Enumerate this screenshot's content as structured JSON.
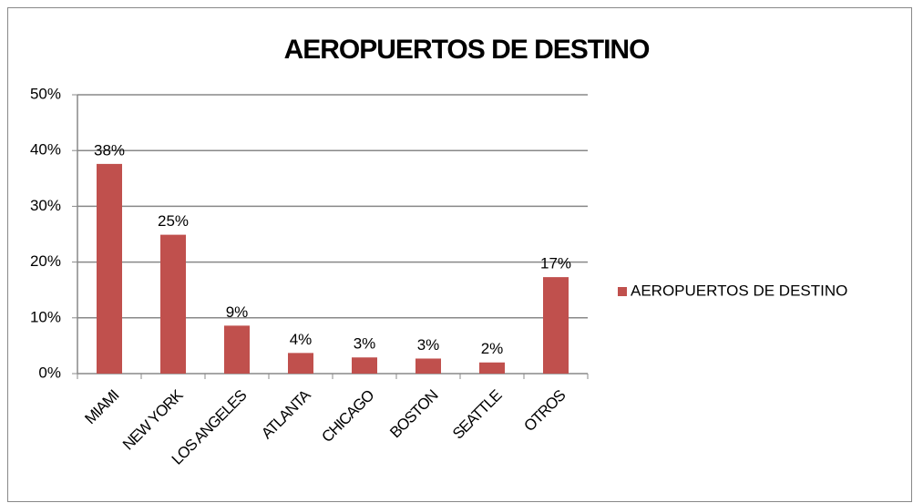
{
  "chart_data": {
    "type": "bar",
    "title": "AEROPUERTOS DE DESTINO",
    "categories": [
      "MIAMI",
      "NEW YORK",
      "LOS ANGELES",
      "ATLANTA",
      "CHICAGO",
      "BOSTON",
      "SEATTLE",
      "OTROS"
    ],
    "series": [
      {
        "name": "AEROPUERTOS DE DESTINO",
        "color": "#c0504d",
        "values": [
          37.6,
          24.9,
          8.6,
          3.7,
          2.9,
          2.7,
          2.0,
          17.3
        ],
        "value_labels": [
          "38%",
          "25%",
          "9%",
          "4%",
          "3%",
          "3%",
          "2%",
          "17%"
        ]
      }
    ],
    "ylim": [
      0,
      50
    ],
    "yticks": [
      {
        "value": 0,
        "label": "0%"
      },
      {
        "value": 10,
        "label": "10%"
      },
      {
        "value": 20,
        "label": "20%"
      },
      {
        "value": 30,
        "label": "30%"
      },
      {
        "value": 40,
        "label": "40%"
      },
      {
        "value": 50,
        "label": "50%"
      }
    ],
    "grid": true,
    "legend": "right"
  }
}
